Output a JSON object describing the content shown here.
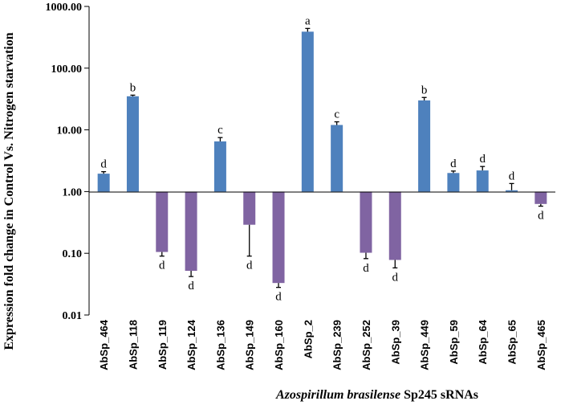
{
  "chart_data": {
    "type": "bar",
    "scale": "log",
    "baseline": 1,
    "title": "",
    "ylabel": "Expression fold change in Control Vs. Nitrogen starvation",
    "xlabel_italic": "Azospirillum brasilense",
    "xlabel_rest": " Sp245 sRNAs",
    "ylim": [
      0.01,
      1000
    ],
    "yticks": [
      0.01,
      0.1,
      1,
      10,
      100,
      1000
    ],
    "ytick_labels": [
      "0.01",
      "0.10",
      "1.00",
      "10.00",
      "100.00",
      "1000.00"
    ],
    "categories": [
      "AbSp_464",
      "AbSp_118",
      "AbSp_119",
      "AbSp_124",
      "AbSp_136",
      "AbSp_149",
      "AbSp_160",
      "AbSp_2",
      "AbSp_239",
      "AbSp_252",
      "AbSp_39",
      "AbSp_449",
      "AbSp_59",
      "AbSp_64",
      "AbSp_65",
      "AbSp_465"
    ],
    "values": [
      1.95,
      35,
      0.105,
      0.052,
      6.5,
      0.29,
      0.033,
      390,
      12,
      0.102,
      0.078,
      30,
      2.0,
      2.2,
      1.05,
      0.63
    ],
    "errors": [
      0.15,
      1.5,
      0.015,
      0.01,
      1.0,
      0.2,
      0.005,
      50,
      1.5,
      0.02,
      0.02,
      3.5,
      0.15,
      0.35,
      0.3,
      0.05
    ],
    "significance": [
      "d",
      "b",
      "d",
      "d",
      "c",
      "d",
      "d",
      "a",
      "c",
      "d",
      "d",
      "b",
      "d",
      "d",
      "d",
      "d"
    ],
    "colors": {
      "up": "#4e81bd",
      "down": "#8064a2",
      "error": "#000000",
      "axis": "#000000"
    }
  }
}
